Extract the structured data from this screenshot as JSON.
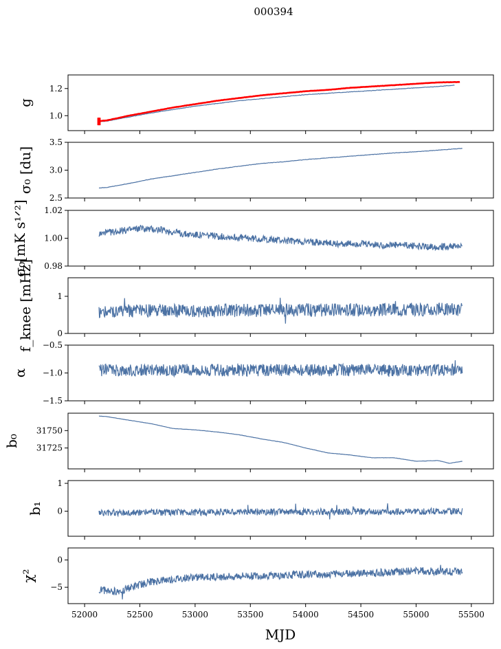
{
  "suptitle": "000394",
  "xlabel": "MJD",
  "x_ticks": [
    52000,
    52500,
    53000,
    53500,
    54000,
    54500,
    55000,
    55500
  ],
  "xlim": [
    51850,
    55700
  ],
  "series_color": "#4c72a4",
  "overlay_color": "#ff0000",
  "chart_data": [
    {
      "type": "line",
      "ylabel": "g",
      "ylim": [
        0.89,
        1.3
      ],
      "y_ticks": [
        1.0,
        1.2
      ],
      "y_tick_labels": [
        "1.0",
        "1.2"
      ],
      "series": [
        {
          "x": [
            52120,
            52200,
            52400,
            52600,
            52800,
            53000,
            53200,
            53400,
            53600,
            53800,
            54000,
            54200,
            54400,
            54600,
            54800,
            55000,
            55200,
            55350
          ],
          "y": [
            0.955,
            0.96,
            0.99,
            1.02,
            1.045,
            1.07,
            1.09,
            1.11,
            1.125,
            1.14,
            1.155,
            1.165,
            1.175,
            1.185,
            1.195,
            1.205,
            1.215,
            1.225
          ]
        },
        {
          "x": [
            52120,
            52200,
            52400,
            52600,
            52800,
            53000,
            53200,
            53400,
            53600,
            53800,
            54000,
            54200,
            54400,
            54600,
            54800,
            55000,
            55200,
            55400
          ],
          "y": [
            0.96,
            0.965,
            1.0,
            1.03,
            1.06,
            1.085,
            1.11,
            1.13,
            1.15,
            1.165,
            1.18,
            1.19,
            1.205,
            1.215,
            1.225,
            1.235,
            1.245,
            1.248
          ]
        }
      ]
    },
    {
      "type": "line",
      "ylabel": "σ₀ [du]",
      "ylim": [
        2.5,
        3.5
      ],
      "y_ticks": [
        2.5,
        3.0,
        3.5
      ],
      "y_tick_labels": [
        "2.5",
        "3.0",
        "3.5"
      ],
      "series": [
        {
          "x": [
            52130,
            52200,
            52400,
            52600,
            52800,
            53000,
            53200,
            53400,
            53600,
            53800,
            54000,
            54200,
            54400,
            54600,
            54800,
            55000,
            55200,
            55420
          ],
          "y": [
            2.68,
            2.69,
            2.76,
            2.84,
            2.9,
            2.96,
            3.02,
            3.07,
            3.12,
            3.15,
            3.19,
            3.22,
            3.25,
            3.28,
            3.31,
            3.33,
            3.36,
            3.39
          ]
        }
      ]
    },
    {
      "type": "line",
      "ylabel": "σ₀[mK s¹ᐟ²]",
      "ylim": [
        0.98,
        1.02
      ],
      "y_ticks": [
        0.98,
        1.0,
        1.02
      ],
      "y_tick_labels": [
        "0.98",
        "1.00",
        "1.02"
      ],
      "series": [
        {
          "x": [
            52130,
            52300,
            52500,
            52700,
            52900,
            53100,
            53300,
            53500,
            53700,
            53900,
            54100,
            54300,
            54500,
            54700,
            54900,
            55100,
            55300,
            55420
          ],
          "y": [
            1.003,
            1.005,
            1.007,
            1.006,
            1.003,
            1.002,
            1.001,
            1.0,
            0.999,
            0.998,
            0.997,
            0.996,
            0.996,
            0.995,
            0.995,
            0.994,
            0.994,
            0.994
          ]
        }
      ]
    },
    {
      "type": "line",
      "ylabel": "f_knee [mHz]",
      "ylim": [
        0,
        1.5
      ],
      "y_ticks": [
        0,
        1
      ],
      "y_tick_labels": [
        "0",
        "1"
      ],
      "series": [
        {
          "x": [
            52130,
            55420
          ],
          "y": [
            0.6,
            0.65
          ]
        }
      ]
    },
    {
      "type": "line",
      "ylabel": "α",
      "ylim": [
        -1.5,
        -0.5
      ],
      "y_ticks": [
        -1.5,
        -1.0,
        -0.5
      ],
      "y_tick_labels": [
        "−1.5",
        "−1.0",
        "−0.5"
      ],
      "series": [
        {
          "x": [
            52130,
            55420
          ],
          "y": [
            -0.95,
            -0.95
          ]
        }
      ]
    },
    {
      "type": "line",
      "ylabel": "b₀",
      "ylim": [
        31695,
        31775
      ],
      "y_ticks": [
        31725,
        31750
      ],
      "y_tick_labels": [
        "31725",
        "31750"
      ],
      "series": [
        {
          "x": [
            52130,
            52200,
            52400,
            52600,
            52800,
            53000,
            53200,
            53400,
            53600,
            53800,
            54000,
            54200,
            54400,
            54600,
            54800,
            55000,
            55200,
            55300,
            55420
          ],
          "y": [
            31771,
            31770,
            31765,
            31760,
            31753,
            31751,
            31748,
            31744,
            31738,
            31733,
            31725,
            31718,
            31715,
            31711,
            31711,
            31706,
            31707,
            31703,
            31706
          ]
        }
      ]
    },
    {
      "type": "line",
      "ylabel": "b₁",
      "ylim": [
        -0.9,
        1.1
      ],
      "y_ticks": [
        0,
        1
      ],
      "y_tick_labels": [
        "0",
        "1"
      ],
      "series": [
        {
          "x": [
            52130,
            55420
          ],
          "y": [
            -0.05,
            0.0
          ]
        }
      ]
    },
    {
      "type": "line",
      "ylabel": "χ²",
      "ylim": [
        -8,
        2.2
      ],
      "y_ticks": [
        -5,
        0
      ],
      "y_tick_labels": [
        "−5",
        "0"
      ],
      "series": [
        {
          "x": [
            52130,
            52300,
            52600,
            53000,
            53400,
            53800,
            54200,
            54600,
            55000,
            55420
          ],
          "y": [
            -5.5,
            -5.8,
            -4.0,
            -3.2,
            -3.0,
            -2.8,
            -2.6,
            -2.4,
            -2.0,
            -2.2
          ]
        }
      ]
    }
  ]
}
